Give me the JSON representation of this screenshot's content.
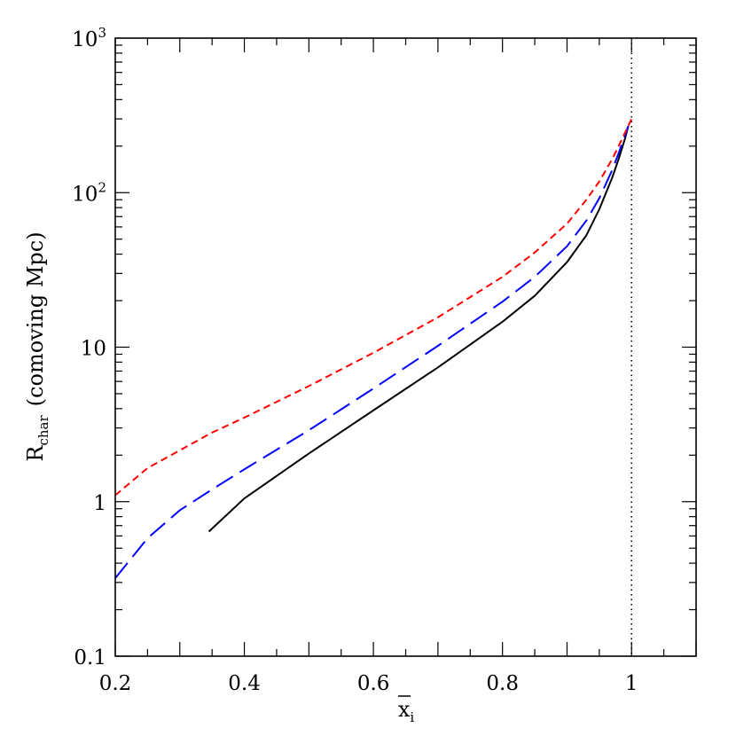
{
  "chart_data": {
    "type": "line",
    "xlabel": "x",
    "xlabel_subscript": "i",
    "ylabel": "R",
    "ylabel_subscript": "char",
    "ylabel_suffix": "(comoving Mpc)",
    "xlim": [
      0.2,
      1.1
    ],
    "ylim": [
      0.1,
      1000
    ],
    "yscale": "log",
    "grid": false,
    "x_ticks": [
      {
        "value": 0.2,
        "label": "0.2"
      },
      {
        "value": 0.4,
        "label": "0.4"
      },
      {
        "value": 0.6,
        "label": "0.6"
      },
      {
        "value": 0.8,
        "label": "0.8"
      },
      {
        "value": 1.0,
        "label": "1"
      }
    ],
    "y_ticks": [
      {
        "value": 0.1,
        "label": "0.1"
      },
      {
        "value": 1,
        "label": "1"
      },
      {
        "value": 10,
        "label": "10"
      },
      {
        "value": 100,
        "base": "10",
        "exp": "2"
      },
      {
        "value": 1000,
        "base": "10",
        "exp": "3"
      }
    ],
    "reference_lines": [
      {
        "axis": "x",
        "value": 1.0,
        "style": "dotted",
        "color": "#000000"
      }
    ],
    "series": [
      {
        "color": "#000000",
        "style": "solid",
        "x": [
          0.345,
          0.4,
          0.5,
          0.6,
          0.7,
          0.8,
          0.85,
          0.9,
          0.93,
          0.95,
          0.97,
          0.98,
          0.99,
          0.995
        ],
        "y": [
          0.64,
          1.05,
          2.05,
          3.9,
          7.4,
          14.6,
          21.5,
          35.5,
          53,
          78,
          125,
          165,
          225,
          270
        ]
      },
      {
        "color": "#0000ff",
        "style": "long-dash",
        "x": [
          0.2,
          0.25,
          0.3,
          0.35,
          0.4,
          0.5,
          0.6,
          0.7,
          0.8,
          0.85,
          0.9,
          0.93,
          0.95,
          0.97,
          0.98,
          0.99,
          0.995
        ],
        "y": [
          0.32,
          0.58,
          0.88,
          1.2,
          1.62,
          2.9,
          5.4,
          10.2,
          19.7,
          28.5,
          45,
          66,
          92,
          140,
          180,
          235,
          270
        ]
      },
      {
        "color": "#ff0000",
        "style": "short-dash",
        "x": [
          0.2,
          0.25,
          0.3,
          0.35,
          0.4,
          0.5,
          0.6,
          0.7,
          0.8,
          0.85,
          0.9,
          0.93,
          0.95,
          0.97,
          0.98,
          0.99,
          1.0
        ],
        "y": [
          1.1,
          1.65,
          2.15,
          2.8,
          3.5,
          5.6,
          9.2,
          15.6,
          28.5,
          41,
          63,
          90,
          118,
          165,
          200,
          245,
          300
        ]
      }
    ]
  }
}
